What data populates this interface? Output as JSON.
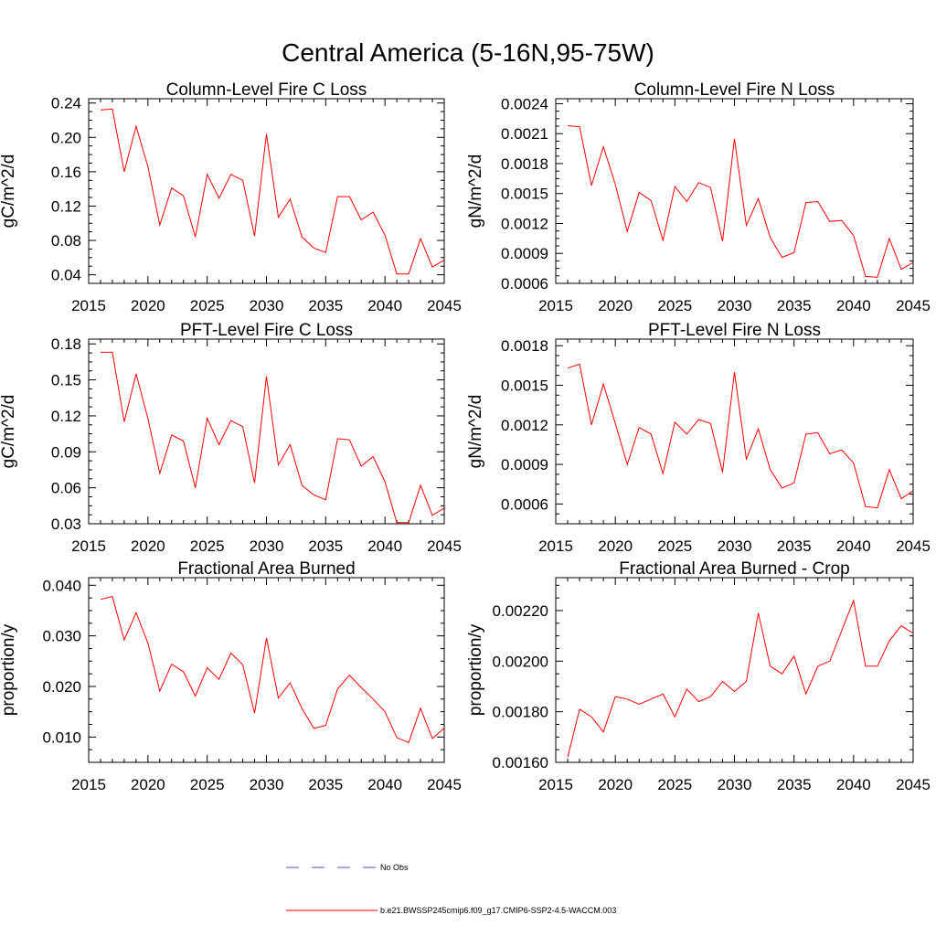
{
  "page_title": "Central America (5-16N,95-75W)",
  "legend": {
    "obs_label": "No Obs",
    "obs_color": "#4a4acc",
    "model_label": "b.e21.BWSSP245cmip6.f09_g17.CMIP6-SSP2-4.5-WACCM.003",
    "model_color": "#ff0000"
  },
  "chart_data": [
    {
      "type": "line",
      "title": "Column-Level Fire C Loss",
      "ylabel": "gC/m^2/d",
      "xlim": [
        2015,
        2045
      ],
      "ylim": [
        0.03,
        0.245
      ],
      "x_ticks": [
        "2015",
        "2020",
        "2025",
        "2030",
        "2035",
        "2040",
        "2045"
      ],
      "y_ticks": [
        "0.04",
        "0.08",
        "0.12",
        "0.16",
        "0.20",
        "0.24"
      ],
      "x": [
        2016,
        2017,
        2018,
        2019,
        2020,
        2021,
        2022,
        2023,
        2024,
        2025,
        2026,
        2027,
        2028,
        2029,
        2030,
        2031,
        2032,
        2033,
        2034,
        2035,
        2036,
        2037,
        2038,
        2039,
        2040,
        2041,
        2042,
        2043,
        2044,
        2045
      ],
      "values": [
        0.232,
        0.233,
        0.16,
        0.213,
        0.166,
        0.098,
        0.141,
        0.132,
        0.084,
        0.157,
        0.129,
        0.157,
        0.15,
        0.085,
        0.204,
        0.107,
        0.128,
        0.084,
        0.071,
        0.066,
        0.131,
        0.131,
        0.104,
        0.113,
        0.086,
        0.041,
        0.041,
        0.082,
        0.049,
        0.057
      ]
    },
    {
      "type": "line",
      "title": "Column-Level Fire N Loss",
      "ylabel": "gN/m^2/d",
      "xlim": [
        2015,
        2045
      ],
      "ylim": [
        0.0006,
        0.00245
      ],
      "x_ticks": [
        "2015",
        "2020",
        "2025",
        "2030",
        "2035",
        "2040",
        "2045"
      ],
      "y_ticks": [
        "0.0006",
        "0.0009",
        "0.0012",
        "0.0015",
        "0.0018",
        "0.0021",
        "0.0024"
      ],
      "x": [
        2016,
        2017,
        2018,
        2019,
        2020,
        2021,
        2022,
        2023,
        2024,
        2025,
        2026,
        2027,
        2028,
        2029,
        2030,
        2031,
        2032,
        2033,
        2034,
        2035,
        2036,
        2037,
        2038,
        2039,
        2040,
        2041,
        2042,
        2043,
        2044,
        2045
      ],
      "values": [
        0.00218,
        0.00217,
        0.00158,
        0.00197,
        0.00159,
        0.00112,
        0.00151,
        0.00143,
        0.00103,
        0.00157,
        0.00142,
        0.00161,
        0.00156,
        0.00102,
        0.00205,
        0.00118,
        0.00145,
        0.00106,
        0.00086,
        0.00091,
        0.00141,
        0.00142,
        0.00122,
        0.00123,
        0.00108,
        0.00067,
        0.00066,
        0.00105,
        0.00074,
        0.00081
      ]
    },
    {
      "type": "line",
      "title": "PFT-Level Fire C Loss",
      "ylabel": "gC/m^2/d",
      "xlim": [
        2015,
        2045
      ],
      "ylim": [
        0.03,
        0.184
      ],
      "x_ticks": [
        "2015",
        "2020",
        "2025",
        "2030",
        "2035",
        "2040",
        "2045"
      ],
      "y_ticks": [
        "0.03",
        "0.06",
        "0.09",
        "0.12",
        "0.15",
        "0.18"
      ],
      "x": [
        2016,
        2017,
        2018,
        2019,
        2020,
        2021,
        2022,
        2023,
        2024,
        2025,
        2026,
        2027,
        2028,
        2029,
        2030,
        2031,
        2032,
        2033,
        2034,
        2035,
        2036,
        2037,
        2038,
        2039,
        2040,
        2041,
        2042,
        2043,
        2044,
        2045
      ],
      "values": [
        0.173,
        0.173,
        0.115,
        0.155,
        0.118,
        0.072,
        0.104,
        0.099,
        0.06,
        0.118,
        0.096,
        0.116,
        0.111,
        0.064,
        0.153,
        0.079,
        0.096,
        0.062,
        0.054,
        0.05,
        0.101,
        0.1,
        0.078,
        0.086,
        0.065,
        0.031,
        0.031,
        0.062,
        0.037,
        0.043
      ]
    },
    {
      "type": "line",
      "title": "PFT-Level Fire N Loss",
      "ylabel": "gN/m^2/d",
      "xlim": [
        2015,
        2045
      ],
      "ylim": [
        0.00045,
        0.00185
      ],
      "x_ticks": [
        "2015",
        "2020",
        "2025",
        "2030",
        "2035",
        "2040",
        "2045"
      ],
      "y_ticks": [
        "0.0006",
        "0.0009",
        "0.0012",
        "0.0015",
        "0.0018"
      ],
      "x": [
        2016,
        2017,
        2018,
        2019,
        2020,
        2021,
        2022,
        2023,
        2024,
        2025,
        2026,
        2027,
        2028,
        2029,
        2030,
        2031,
        2032,
        2033,
        2034,
        2035,
        2036,
        2037,
        2038,
        2039,
        2040,
        2041,
        2042,
        2043,
        2044,
        2045
      ],
      "values": [
        0.00163,
        0.00166,
        0.0012,
        0.00151,
        0.00121,
        0.0009,
        0.00118,
        0.00113,
        0.00083,
        0.00122,
        0.00113,
        0.00124,
        0.00121,
        0.00084,
        0.0016,
        0.00094,
        0.00117,
        0.00086,
        0.00072,
        0.00076,
        0.00113,
        0.00114,
        0.00098,
        0.00101,
        0.00091,
        0.00058,
        0.00057,
        0.00086,
        0.00064,
        0.0007
      ]
    },
    {
      "type": "line",
      "title": "Fractional Area Burned",
      "ylabel": "proportion/y",
      "xlim": [
        2015,
        2045
      ],
      "ylim": [
        0.005,
        0.0415
      ],
      "x_ticks": [
        "2015",
        "2020",
        "2025",
        "2030",
        "2035",
        "2040",
        "2045"
      ],
      "y_ticks": [
        "0.010",
        "0.020",
        "0.030",
        "0.040"
      ],
      "x": [
        2016,
        2017,
        2018,
        2019,
        2020,
        2021,
        2022,
        2023,
        2024,
        2025,
        2026,
        2027,
        2028,
        2029,
        2030,
        2031,
        2032,
        2033,
        2034,
        2035,
        2036,
        2037,
        2038,
        2039,
        2040,
        2041,
        2042,
        2043,
        2044,
        2045
      ],
      "values": [
        0.0372,
        0.0378,
        0.0292,
        0.0346,
        0.0286,
        0.0191,
        0.0244,
        0.0229,
        0.0181,
        0.0237,
        0.0214,
        0.0266,
        0.0243,
        0.0147,
        0.0296,
        0.0177,
        0.0207,
        0.0156,
        0.0117,
        0.0123,
        0.0195,
        0.0222,
        0.0198,
        0.0175,
        0.015,
        0.0099,
        0.0089,
        0.0157,
        0.0097,
        0.0118
      ]
    },
    {
      "type": "line",
      "title": "Fractional Area Burned - Crop",
      "ylabel": "proportion/y",
      "xlim": [
        2015,
        2045
      ],
      "ylim": [
        0.0016,
        0.00233
      ],
      "x_ticks": [
        "2015",
        "2020",
        "2025",
        "2030",
        "2035",
        "2040",
        "2045"
      ],
      "y_ticks": [
        "0.00160",
        "0.00180",
        "0.00200",
        "0.00220"
      ],
      "x": [
        2016,
        2017,
        2018,
        2019,
        2020,
        2021,
        2022,
        2023,
        2024,
        2025,
        2026,
        2027,
        2028,
        2029,
        2030,
        2031,
        2032,
        2033,
        2034,
        2035,
        2036,
        2037,
        2038,
        2039,
        2040,
        2041,
        2042,
        2043,
        2044,
        2045
      ],
      "values": [
        0.00162,
        0.00181,
        0.00178,
        0.00172,
        0.00186,
        0.00185,
        0.00183,
        0.00185,
        0.00187,
        0.00178,
        0.00189,
        0.00184,
        0.00186,
        0.00192,
        0.00188,
        0.00192,
        0.00219,
        0.00198,
        0.00195,
        0.00202,
        0.00187,
        0.00198,
        0.002,
        0.00212,
        0.00224,
        0.00198,
        0.00198,
        0.00208,
        0.00214,
        0.00211
      ]
    }
  ]
}
